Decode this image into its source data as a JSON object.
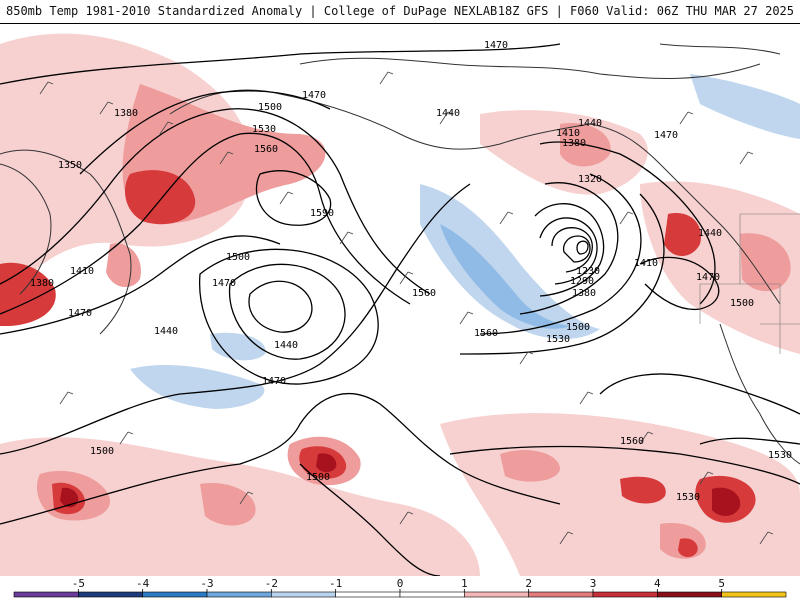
{
  "header": {
    "title_left": "850mb Temp 1981-2010 Standardized Anomaly | College of DuPage NEXLAB",
    "title_right": "18Z GFS | F060 Valid: 06Z THU MAR 27 2025"
  },
  "colorbar": {
    "tick_labels": [
      "-5",
      "-4",
      "-3",
      "-2",
      "-1",
      "0",
      "1",
      "2",
      "3",
      "4",
      "5"
    ],
    "colors": [
      "#6a3d9a",
      "#1f3c7a",
      "#2b7cc4",
      "#6ea7dc",
      "#b9d3ee",
      "#ffffff",
      "#ffffff",
      "#f4b8b8",
      "#e27c7c",
      "#c7303a",
      "#8a0f1c",
      "#f2c31c"
    ]
  },
  "contour_labels": [
    "1470",
    "1380",
    "1350",
    "1500",
    "1470",
    "1530",
    "1560",
    "1590",
    "1500",
    "1410",
    "1380",
    "1470",
    "1470",
    "1440",
    "1440",
    "1470",
    "1560",
    "1500",
    "1500",
    "1440",
    "1410",
    "1380",
    "1440",
    "1470",
    "1320",
    "1440",
    "1410",
    "1230",
    "1290",
    "1380",
    "1470",
    "1500",
    "1500",
    "1530",
    "1560",
    "1560",
    "1530",
    "1530"
  ],
  "map": {
    "anomaly_colors": {
      "light_blue": "#bfd6ee",
      "mid_blue": "#8fbbe6",
      "light_red": "#f7d0d0",
      "mid_red": "#ee9c9c",
      "strong_red": "#d63a3a",
      "dark_red": "#a8121e"
    }
  }
}
